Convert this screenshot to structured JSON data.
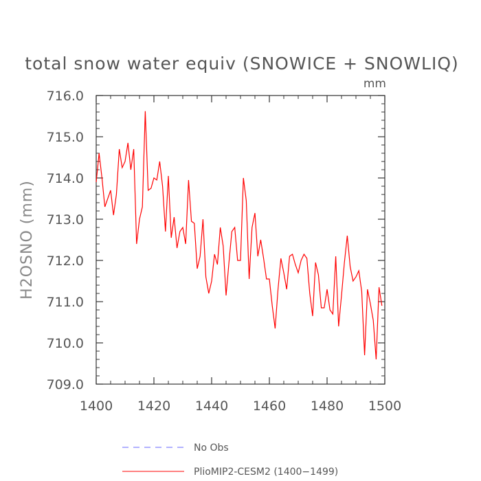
{
  "chart_data": {
    "type": "line",
    "title": "total snow water equiv (SNOWICE + SNOWLIQ)",
    "units": "mm",
    "xlabel": "",
    "ylabel": "H2OSNO  (mm)",
    "xlim": [
      1400,
      1500
    ],
    "ylim": [
      709.0,
      716.0
    ],
    "x_ticks": [
      1400,
      1420,
      1440,
      1460,
      1480,
      1500
    ],
    "x_tick_labels": [
      "1400",
      "1420",
      "1440",
      "1460",
      "1480",
      "1500"
    ],
    "y_ticks": [
      709,
      710,
      711,
      712,
      713,
      714,
      715,
      716
    ],
    "y_tick_labels": [
      "709.0",
      "710.0",
      "711.0",
      "712.0",
      "713.0",
      "714.0",
      "715.0",
      "716.0"
    ],
    "grid": false,
    "series": [
      {
        "name": "PlioMIP2-CESM2 (1400-1499)",
        "color": "#ff0000",
        "style": "solid",
        "x": [
          1400,
          1401,
          1402,
          1403,
          1404,
          1405,
          1406,
          1407,
          1408,
          1409,
          1410,
          1411,
          1412,
          1413,
          1414,
          1415,
          1416,
          1417,
          1418,
          1419,
          1420,
          1421,
          1422,
          1423,
          1424,
          1425,
          1426,
          1427,
          1428,
          1429,
          1430,
          1431,
          1432,
          1433,
          1434,
          1435,
          1436,
          1437,
          1438,
          1439,
          1440,
          1441,
          1442,
          1443,
          1444,
          1445,
          1446,
          1447,
          1448,
          1449,
          1450,
          1451,
          1452,
          1453,
          1454,
          1455,
          1456,
          1457,
          1458,
          1459,
          1460,
          1461,
          1462,
          1463,
          1464,
          1465,
          1466,
          1467,
          1468,
          1469,
          1470,
          1471,
          1472,
          1473,
          1474,
          1475,
          1476,
          1477,
          1478,
          1479,
          1480,
          1481,
          1482,
          1483,
          1484,
          1485,
          1486,
          1487,
          1488,
          1489,
          1490,
          1491,
          1492,
          1493,
          1494,
          1495,
          1496,
          1497,
          1498,
          1499
        ],
        "values": [
          713.9,
          714.6,
          714.0,
          713.3,
          713.5,
          713.7,
          713.1,
          713.6,
          714.7,
          714.25,
          714.4,
          714.85,
          714.2,
          714.7,
          712.4,
          713.0,
          713.3,
          715.62,
          713.7,
          713.75,
          714.0,
          713.95,
          714.4,
          713.8,
          712.7,
          714.05,
          712.55,
          713.05,
          712.3,
          712.7,
          712.8,
          712.4,
          713.95,
          712.95,
          712.9,
          711.8,
          712.1,
          713.0,
          711.6,
          711.2,
          711.5,
          712.15,
          711.9,
          712.8,
          712.35,
          711.15,
          711.95,
          712.7,
          712.8,
          712.0,
          712.0,
          714.0,
          713.45,
          711.55,
          712.8,
          713.15,
          712.1,
          712.5,
          712.05,
          711.55,
          711.55,
          710.9,
          710.35,
          711.3,
          712.05,
          711.7,
          711.3,
          712.1,
          712.15,
          711.9,
          711.7,
          712.0,
          712.15,
          712.05,
          711.2,
          710.65,
          711.95,
          711.65,
          710.85,
          710.85,
          711.3,
          710.8,
          710.7,
          712.1,
          710.4,
          711.15,
          711.95,
          712.6,
          711.85,
          711.5,
          711.6,
          711.75,
          711.25,
          709.7,
          711.3,
          710.95,
          710.55,
          709.6,
          711.35,
          710.9
        ]
      },
      {
        "name": "No Obs",
        "color": "#6666ff",
        "style": "dashed",
        "x": [],
        "values": []
      }
    ],
    "legend": [
      {
        "label": "No Obs",
        "color": "#6666ff",
        "style": "dashed"
      },
      {
        "label": "PlioMIP2-CESM2 (1400−1499)",
        "color": "#ff0000",
        "style": "solid"
      }
    ],
    "legend_position": "bottom"
  }
}
